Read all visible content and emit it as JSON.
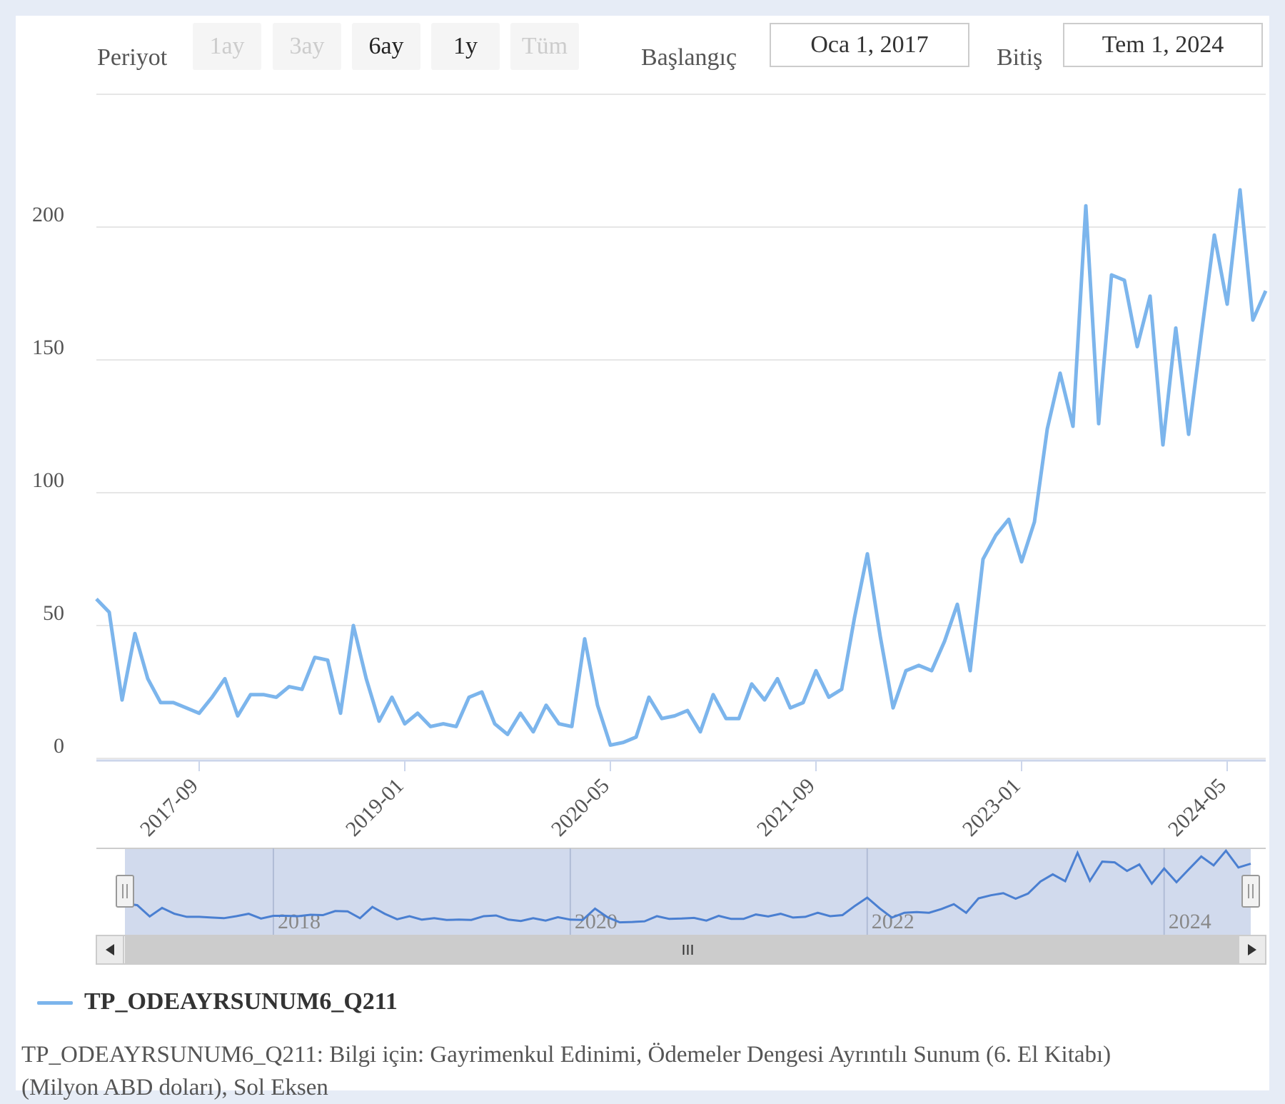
{
  "toolbar": {
    "period_label": "Periyot",
    "buttons": [
      {
        "label": "1ay",
        "disabled": true
      },
      {
        "label": "3ay",
        "disabled": true
      },
      {
        "label": "6ay",
        "disabled": false
      },
      {
        "label": "1y",
        "disabled": false
      },
      {
        "label": "Tüm",
        "disabled": true
      }
    ],
    "start_label": "Başlangıç",
    "start_value": "Oca 1, 2017",
    "end_label": "Bitiş",
    "end_value": "Tem 1, 2024"
  },
  "chart_data": {
    "type": "line",
    "title": "",
    "xlabel": "",
    "ylabel": "",
    "ylim": [
      0,
      250
    ],
    "y_ticks": [
      0,
      50,
      100,
      150,
      200
    ],
    "x_tick_labels": [
      "2017-09",
      "2019-01",
      "2020-05",
      "2021-09",
      "2023-01",
      "2024-05"
    ],
    "grid": true,
    "legend_position": "bottom-left",
    "x_start": "2017-01",
    "series": [
      {
        "name": "TP_ODEAYRSUNUM6_Q211",
        "color": "#7cb5ec",
        "values": [
          60,
          55,
          22,
          47,
          30,
          21,
          21,
          19,
          17,
          23,
          30,
          16,
          24,
          24,
          23,
          27,
          26,
          38,
          37,
          17,
          50,
          30,
          14,
          23,
          13,
          17,
          12,
          13,
          12,
          23,
          25,
          13,
          9,
          17,
          10,
          20,
          13,
          12,
          45,
          20,
          5,
          6,
          8,
          23,
          15,
          16,
          18,
          10,
          24,
          15,
          15,
          28,
          22,
          30,
          19,
          21,
          33,
          23,
          26,
          53,
          77,
          46,
          19,
          33,
          35,
          33,
          44,
          58,
          33,
          75,
          84,
          90,
          74,
          89,
          124,
          145,
          125,
          208,
          126,
          182,
          180,
          155,
          174,
          118,
          162,
          122,
          160,
          197,
          171,
          214,
          165,
          176
        ]
      }
    ]
  },
  "navigator": {
    "year_labels": [
      "2018",
      "2020",
      "2022",
      "2024"
    ],
    "scroll_left_icon": "arrow-left-icon",
    "scroll_right_icon": "arrow-right-icon",
    "grip_icon": "grip-icon"
  },
  "legend": {
    "label": "TP_ODEAYRSUNUM6_Q211"
  },
  "caption": "TP_ODEAYRSUNUM6_Q211: Bilgi için: Gayrimenkul Edinimi, Ödemeler Dengesi Ayrıntılı Sunum (6. El Kitabı) (Milyon ABD doları), Sol Eksen"
}
